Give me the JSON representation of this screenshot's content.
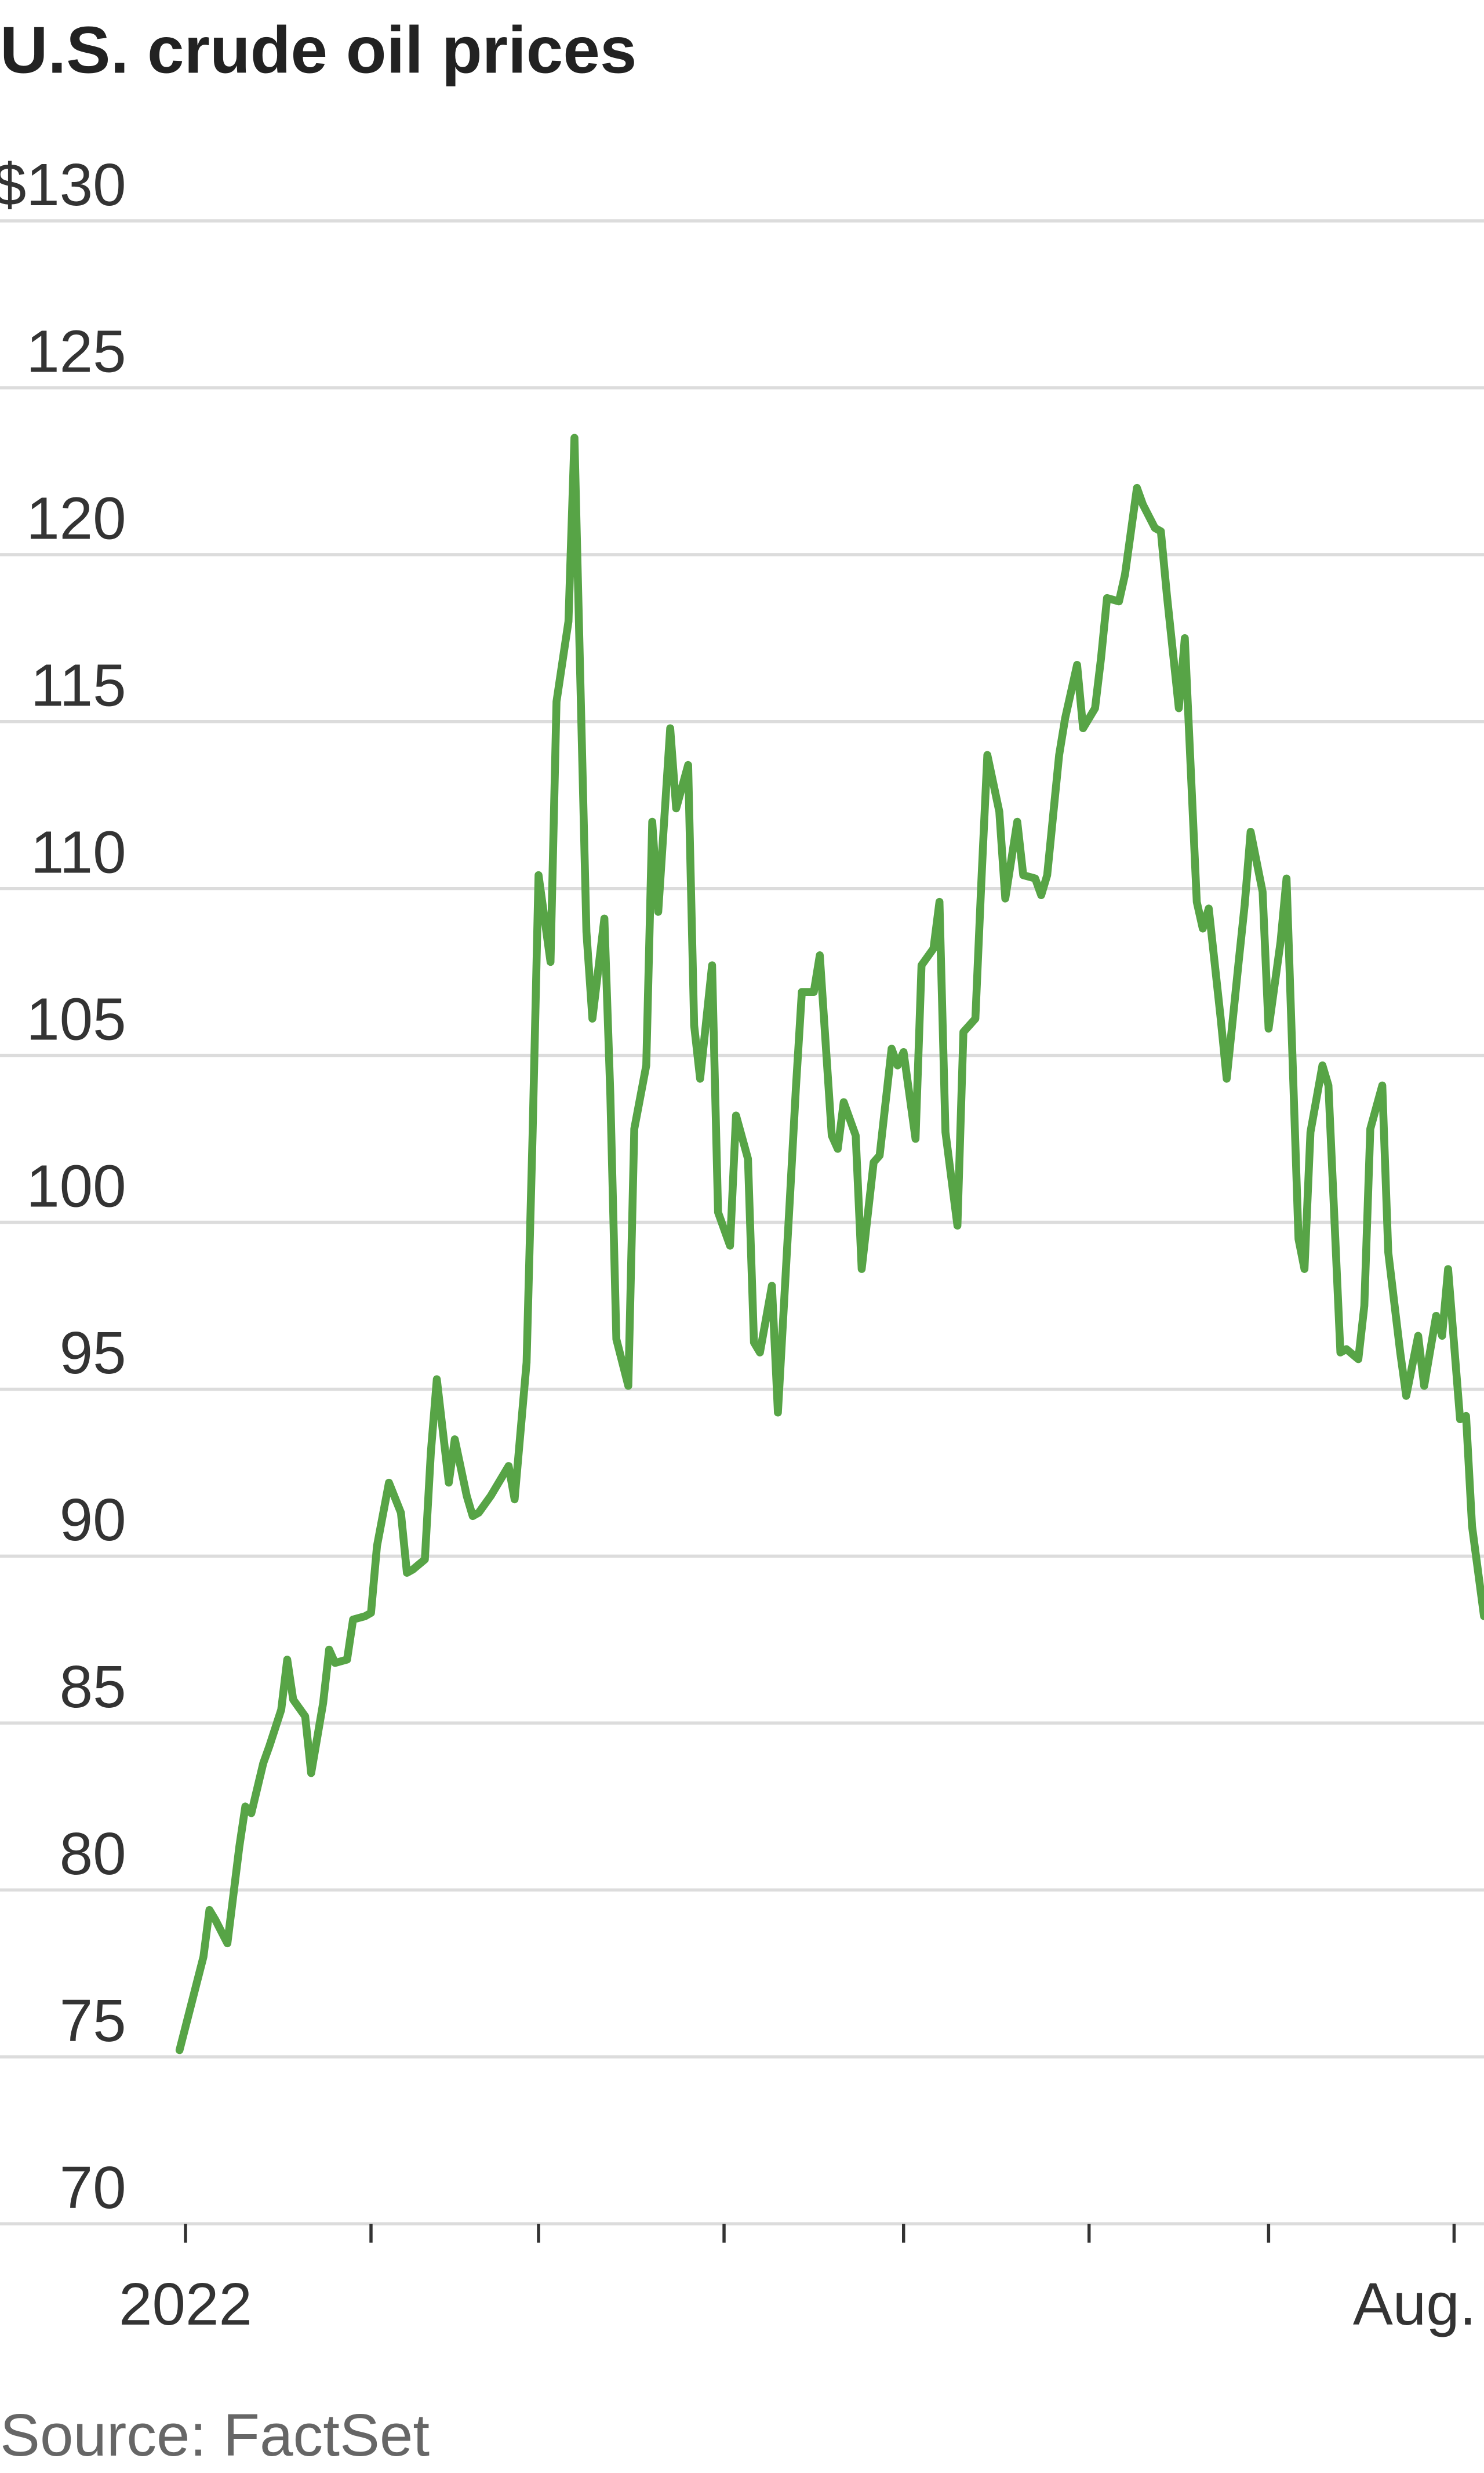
{
  "chart_data": {
    "type": "line",
    "title": "U.S. crude oil prices",
    "source": "Source: FactSet",
    "x": [
      -1,
      3,
      4,
      5,
      7,
      9,
      10,
      11,
      13,
      14,
      16,
      17,
      18,
      20,
      21,
      23,
      24,
      25,
      27,
      28,
      30,
      31,
      32,
      34,
      36,
      37,
      38,
      40,
      41,
      42,
      44,
      45,
      47,
      48,
      49,
      51,
      52,
      54,
      55,
      57,
      58,
      59,
      61,
      62,
      64,
      65,
      67,
      68,
      70,
      71,
      72,
      74,
      75,
      77,
      78,
      79,
      81,
      82,
      84,
      85,
      86,
      88,
      89,
      91,
      92,
      94,
      95,
      96,
      98,
      99,
      101,
      102,
      103,
      105,
      106,
      108,
      109,
      110,
      112,
      113,
      115,
      116,
      118,
      119,
      120,
      122,
      123,
      125,
      126,
      127,
      129,
      130,
      132,
      133,
      134,
      136,
      137,
      139,
      140,
      142,
      143,
      144,
      146,
      147,
      149,
      150,
      152,
      153,
      154,
      156,
      157,
      159,
      160,
      162,
      163,
      164,
      166,
      167,
      169,
      170,
      171,
      173,
      174,
      176,
      177,
      178,
      180,
      181,
      183,
      184,
      186,
      187,
      188,
      190,
      191,
      193,
      194,
      196,
      197,
      198,
      200,
      201,
      203,
      204,
      206,
      207,
      209,
      210,
      211,
      213,
      214,
      215,
      217
    ],
    "series": [
      {
        "color": "#57a446",
        "values": [
          75.2,
          78.0,
          79.4,
          79.1,
          78.4,
          81.3,
          82.5,
          82.3,
          83.8,
          84.3,
          85.4,
          86.9,
          85.7,
          85.2,
          83.5,
          85.6,
          87.2,
          86.8,
          86.9,
          88.1,
          88.2,
          88.3,
          90.3,
          92.2,
          91.3,
          89.5,
          89.6,
          89.9,
          93.1,
          95.3,
          92.2,
          93.5,
          91.8,
          91.2,
          91.3,
          91.8,
          92.1,
          92.7,
          91.7,
          95.8,
          102.6,
          110.4,
          107.8,
          115.6,
          118.0,
          123.5,
          108.7,
          106.1,
          109.1,
          103.8,
          96.5,
          95.1,
          102.8,
          104.7,
          112.0,
          109.3,
          114.8,
          112.4,
          113.7,
          105.9,
          104.3,
          107.7,
          100.3,
          99.3,
          103.2,
          101.9,
          96.4,
          96.1,
          98.1,
          94.3,
          100.7,
          104.0,
          106.9,
          106.9,
          108.0,
          102.6,
          102.2,
          103.6,
          102.6,
          98.6,
          101.8,
          102.0,
          105.2,
          104.7,
          105.1,
          102.5,
          107.7,
          108.2,
          109.6,
          102.7,
          99.9,
          105.7,
          106.1,
          110.2,
          114.0,
          112.3,
          109.7,
          112.0,
          110.4,
          110.3,
          109.8,
          110.4,
          114.0,
          115.1,
          116.7,
          114.8,
          115.4,
          116.9,
          118.7,
          118.6,
          119.4,
          122.0,
          121.5,
          120.8,
          120.7,
          118.8,
          115.4,
          117.5,
          109.6,
          108.8,
          109.4,
          106.1,
          104.3,
          107.8,
          109.5,
          111.7,
          109.9,
          105.8,
          108.4,
          110.3,
          99.5,
          98.6,
          102.7,
          104.7,
          104.1,
          96.1,
          96.2,
          95.9,
          97.5,
          102.8,
          104.1,
          99.1,
          96.1,
          94.8,
          96.6,
          95.1,
          97.2,
          96.6,
          98.6,
          94.1,
          94.2,
          90.9,
          88.2
        ]
      }
    ],
    "xlim": [
      -31,
      217
    ],
    "xticks": [
      0,
      31,
      59,
      90,
      120,
      151,
      181,
      212
    ],
    "xtick_labels": [
      {
        "value": 0,
        "label": "2022"
      },
      {
        "value": 212,
        "label": "Aug."
      }
    ],
    "ylim": [
      70,
      130
    ],
    "yticks": [
      70,
      75,
      80,
      85,
      90,
      95,
      100,
      105,
      110,
      115,
      120,
      125,
      {
        "value": 130,
        "label": "$130"
      }
    ],
    "grid": true
  }
}
